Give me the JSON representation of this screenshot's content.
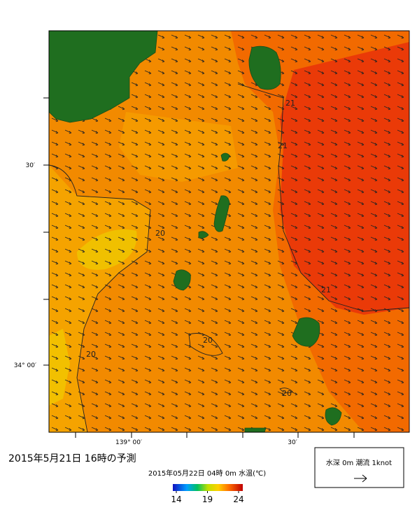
{
  "map": {
    "lat_labels": [
      "30′",
      "34° 00′"
    ],
    "lon_labels": [
      "139° 00′",
      "30′"
    ],
    "contour_labels": [
      "21",
      "21",
      "20",
      "21",
      "20",
      "20",
      "20"
    ]
  },
  "caption": {
    "title": "2015年5月21日  16時の予測",
    "subtitle": "2015年05月22日 04時 0m 水温(℃)"
  },
  "colorbar": {
    "ticks": [
      14,
      19,
      24
    ]
  },
  "legend": {
    "label": "水深 0m  潮流 1knot"
  }
}
